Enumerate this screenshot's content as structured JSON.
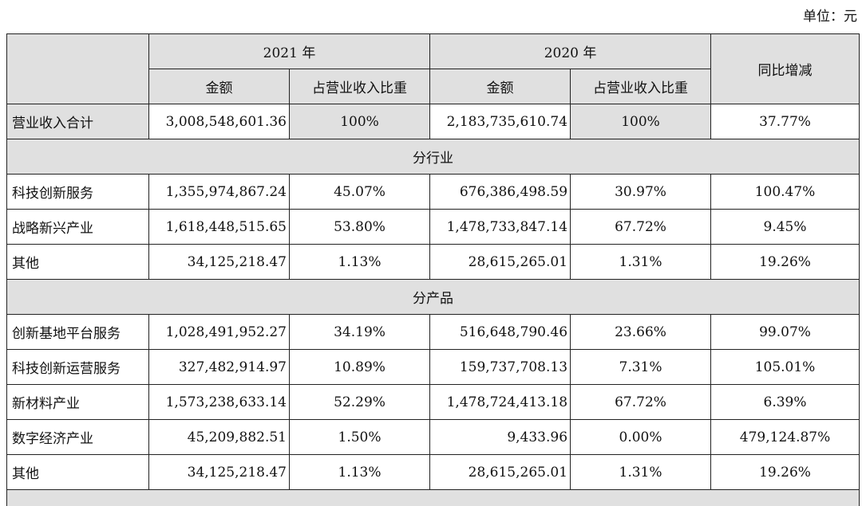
{
  "unit_label": "单位：元",
  "header": {
    "year_a": "2021 年",
    "year_b": "2020 年",
    "amount": "金额",
    "share": "占营业收入比重",
    "yoy": "同比增减"
  },
  "total": {
    "name": "营业收入合计",
    "amt_a": "3,008,548,601.36",
    "pct_a": "100%",
    "amt_b": "2,183,735,610.74",
    "pct_b": "100%",
    "yoy": "37.77%"
  },
  "by_industry": {
    "title": "分行业",
    "rows": [
      {
        "name": "科技创新服务",
        "amt_a": "1,355,974,867.24",
        "pct_a": "45.07%",
        "amt_b": "676,386,498.59",
        "pct_b": "30.97%",
        "yoy": "100.47%"
      },
      {
        "name": "战略新兴产业",
        "amt_a": "1,618,448,515.65",
        "pct_a": "53.80%",
        "amt_b": "1,478,733,847.14",
        "pct_b": "67.72%",
        "yoy": "9.45%"
      },
      {
        "name": "其他",
        "amt_a": "34,125,218.47",
        "pct_a": "1.13%",
        "amt_b": "28,615,265.01",
        "pct_b": "1.31%",
        "yoy": "19.26%"
      }
    ]
  },
  "by_product": {
    "title": "分产品",
    "rows": [
      {
        "name": "创新基地平台服务",
        "amt_a": "1,028,491,952.27",
        "pct_a": "34.19%",
        "amt_b": "516,648,790.46",
        "pct_b": "23.66%",
        "yoy": "99.07%"
      },
      {
        "name": "科技创新运营服务",
        "amt_a": "327,482,914.97",
        "pct_a": "10.89%",
        "amt_b": "159,737,708.13",
        "pct_b": "7.31%",
        "yoy": "105.01%"
      },
      {
        "name": "新材料产业",
        "amt_a": "1,573,238,633.14",
        "pct_a": "52.29%",
        "amt_b": "1,478,724,413.18",
        "pct_b": "67.72%",
        "yoy": "6.39%"
      },
      {
        "name": "数字经济产业",
        "amt_a": "45,209,882.51",
        "pct_a": "1.50%",
        "amt_b": "9,433.96",
        "pct_b": "0.00%",
        "yoy": "479,124.87%"
      },
      {
        "name": "其他",
        "amt_a": "34,125,218.47",
        "pct_a": "1.13%",
        "amt_b": "28,615,265.01",
        "pct_b": "1.31%",
        "yoy": "19.26%"
      }
    ]
  }
}
